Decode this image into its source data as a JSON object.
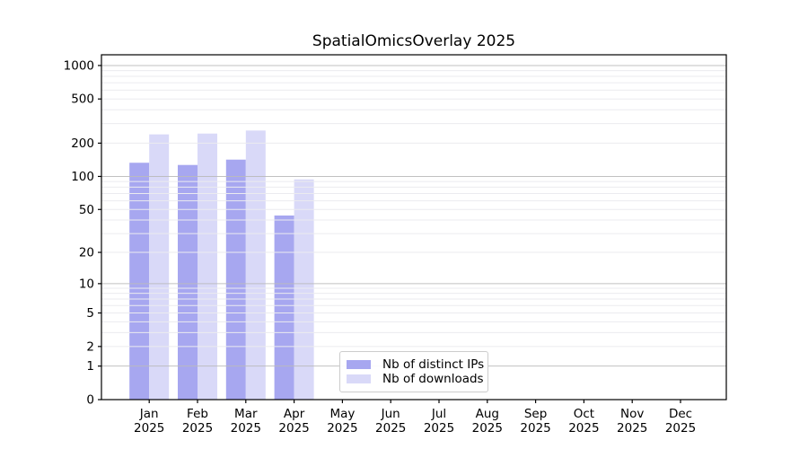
{
  "title": "SpatialOmicsOverlay 2025",
  "colors": {
    "distinct_ips_bar": "#a7a7f0",
    "downloads_bar": "#d9d9f8",
    "major_gridline": "#bbbbbb",
    "minor_gridline": "#ebebef",
    "axis_spine": "#000000"
  },
  "legend": {
    "position": "inside plot, lower center",
    "items": [
      {
        "label": "Nb of distinct IPs",
        "color": "#a7a7f0"
      },
      {
        "label": "Nb of downloads",
        "color": "#d9d9f8"
      }
    ]
  },
  "chart_data": {
    "type": "bar",
    "title": "SpatialOmicsOverlay 2025",
    "xlabel": "",
    "ylabel": "",
    "categories": [
      "Jan 2025",
      "Feb 2025",
      "Mar 2025",
      "Apr 2025",
      "May 2025",
      "Jun 2025",
      "Jul 2025",
      "Aug 2025",
      "Sep 2025",
      "Oct 2025",
      "Nov 2025",
      "Dec 2025"
    ],
    "series": [
      {
        "name": "Nb of distinct IPs",
        "color": "#a7a7f0",
        "values": [
          133,
          127,
          142,
          44,
          null,
          null,
          null,
          null,
          null,
          null,
          null,
          null
        ]
      },
      {
        "name": "Nb of downloads",
        "color": "#d9d9f8",
        "values": [
          240,
          244,
          260,
          94,
          null,
          null,
          null,
          null,
          null,
          null,
          null,
          null
        ]
      }
    ],
    "yscale": "symlog: position proportional to log10(value+1)",
    "yticks": [
      0,
      1,
      2,
      5,
      10,
      20,
      50,
      100,
      200,
      500,
      1000
    ],
    "ylim": [
      0,
      1250
    ],
    "grid": "horizontal major lines at 1,10,100,1000; faint minor log lines; drawn over bars",
    "legend_position": "lower center inside axes"
  }
}
